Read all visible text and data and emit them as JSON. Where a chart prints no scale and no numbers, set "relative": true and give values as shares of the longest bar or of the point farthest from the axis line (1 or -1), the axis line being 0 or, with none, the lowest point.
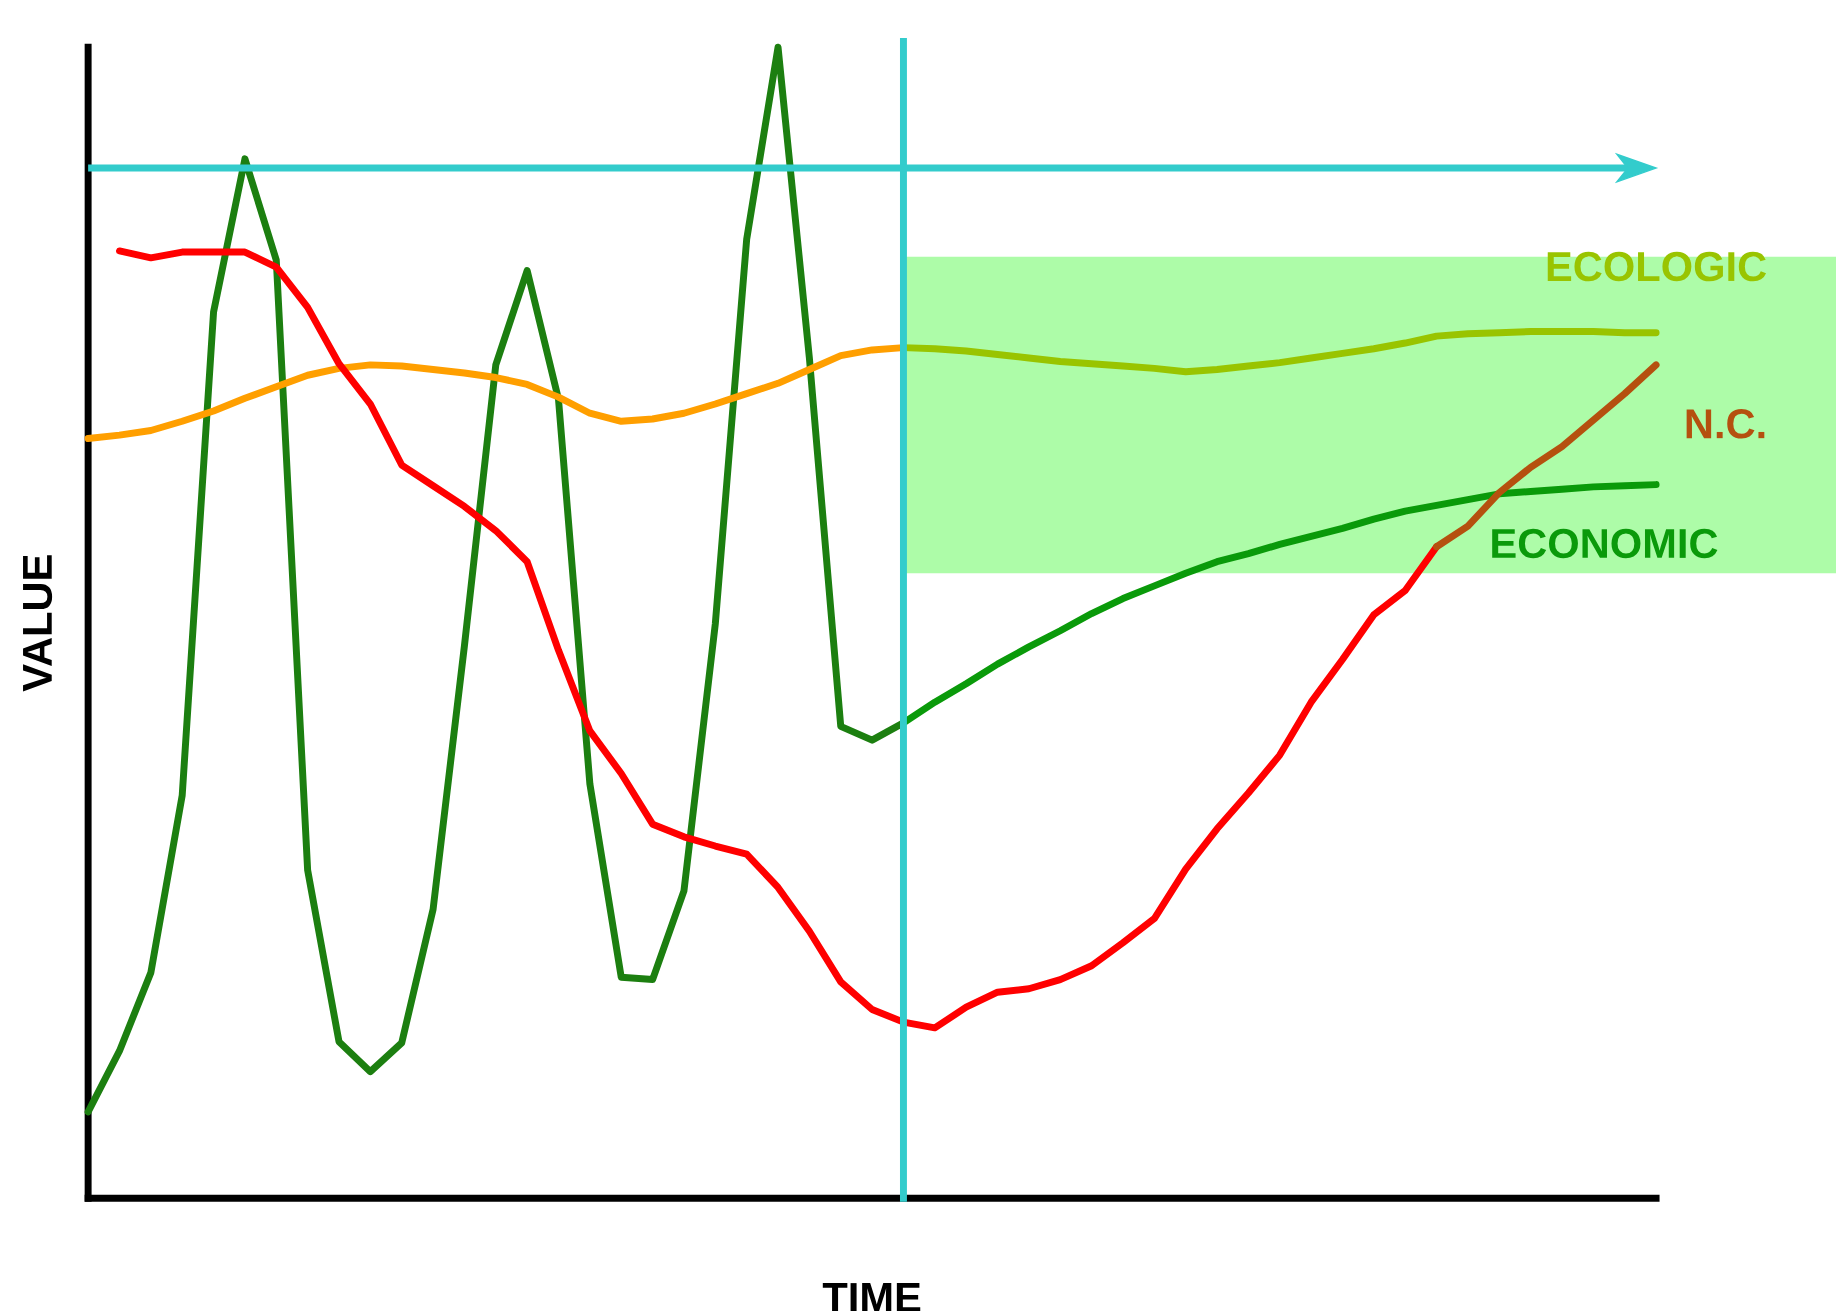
{
  "chart_data": {
    "type": "line",
    "relative": true,
    "xlabel": "TIME",
    "ylabel": "VALUE",
    "marker": "none",
    "line_style": "solid",
    "categories": [
      null,
      null,
      null,
      null,
      null,
      null,
      null,
      null,
      null,
      null,
      null,
      null,
      null,
      null,
      null,
      null,
      null,
      null,
      null,
      null,
      null,
      null,
      null,
      null,
      null,
      null,
      null,
      null,
      null,
      null,
      null,
      null,
      null,
      null,
      null,
      null,
      null,
      null,
      null,
      null,
      null,
      null,
      null,
      null,
      null,
      null,
      null,
      null,
      null,
      null,
      null
    ],
    "series": [
      {
        "color": "#1c7f10",
        "values": [
          0.075,
          0.128,
          0.196,
          0.35,
          0.77,
          0.903,
          0.815,
          0.285,
          0.136,
          0.11,
          0.135,
          0.251,
          0.48,
          0.724,
          0.806,
          0.694,
          0.36,
          0.192,
          0.19,
          0.267,
          0.499,
          0.833,
          1.0,
          0.73,
          0.41,
          0.398,
          0.413,
          null,
          null,
          null,
          null,
          null,
          null,
          null,
          null,
          null,
          null,
          null,
          null,
          null,
          null,
          null,
          null,
          null,
          null,
          null,
          null,
          null,
          null,
          null,
          null
        ]
      },
      {
        "name": "ECONOMIC",
        "color": "#0a9a0a",
        "values": [
          null,
          null,
          null,
          null,
          null,
          null,
          null,
          null,
          null,
          null,
          null,
          null,
          null,
          null,
          null,
          null,
          null,
          null,
          null,
          null,
          null,
          null,
          null,
          null,
          null,
          null,
          0.413,
          0.431,
          0.447,
          0.464,
          0.479,
          0.493,
          0.508,
          0.521,
          0.532,
          0.543,
          0.553,
          0.56,
          0.568,
          0.575,
          0.582,
          0.59,
          0.597,
          0.602,
          0.607,
          0.612,
          0.614,
          0.616,
          0.618,
          0.619,
          0.62
        ]
      },
      {
        "color": "#ff9f00",
        "values": [
          0.66,
          0.663,
          0.667,
          0.675,
          0.684,
          0.695,
          0.705,
          0.715,
          0.721,
          0.724,
          0.723,
          0.72,
          0.717,
          0.713,
          0.707,
          0.696,
          0.682,
          0.675,
          0.677,
          0.682,
          0.69,
          0.699,
          0.708,
          0.72,
          0.732,
          0.737,
          0.739,
          null,
          null,
          null,
          null,
          null,
          null,
          null,
          null,
          null,
          null,
          null,
          null,
          null,
          null,
          null,
          null,
          null,
          null,
          null,
          null,
          null,
          null,
          null,
          null
        ]
      },
      {
        "name": "ECOLOGIC",
        "color": "#99c400",
        "values": [
          null,
          null,
          null,
          null,
          null,
          null,
          null,
          null,
          null,
          null,
          null,
          null,
          null,
          null,
          null,
          null,
          null,
          null,
          null,
          null,
          null,
          null,
          null,
          null,
          null,
          null,
          0.739,
          0.738,
          0.736,
          0.733,
          0.73,
          0.727,
          0.725,
          0.723,
          0.721,
          0.718,
          0.72,
          0.723,
          0.726,
          0.73,
          0.734,
          0.738,
          0.743,
          0.749,
          0.751,
          0.752,
          0.753,
          0.753,
          0.753,
          0.752,
          0.752
        ]
      },
      {
        "color": "#ff0000",
        "values": [
          null,
          0.823,
          0.817,
          0.822,
          0.822,
          0.822,
          0.809,
          0.774,
          0.725,
          0.69,
          0.637,
          0.619,
          0.601,
          0.58,
          0.553,
          0.476,
          0.406,
          0.369,
          0.325,
          0.314,
          0.306,
          0.299,
          0.27,
          0.232,
          0.188,
          0.164,
          0.153,
          0.148,
          0.166,
          0.179,
          0.182,
          0.19,
          0.202,
          0.222,
          0.243,
          0.286,
          0.321,
          0.352,
          0.385,
          0.431,
          0.468,
          0.507,
          0.528,
          0.566,
          null,
          null,
          null,
          null,
          null,
          null,
          null
        ]
      },
      {
        "name": "N.C.",
        "color": "#b5500f",
        "values": [
          null,
          null,
          null,
          null,
          null,
          null,
          null,
          null,
          null,
          null,
          null,
          null,
          null,
          null,
          null,
          null,
          null,
          null,
          null,
          null,
          null,
          null,
          null,
          null,
          null,
          null,
          null,
          null,
          null,
          null,
          null,
          null,
          null,
          null,
          null,
          null,
          null,
          null,
          null,
          null,
          null,
          null,
          null,
          0.566,
          0.584,
          0.613,
          0.635,
          0.653,
          0.676,
          0.699,
          0.724
        ]
      }
    ],
    "ref_lines": [
      {
        "axis": "y",
        "value": 0.895,
        "color": "#33cccc"
      }
    ],
    "bands": [
      {
        "axis": "y",
        "from": 0.543,
        "to": 0.818,
        "color": "#adfca8"
      }
    ]
  }
}
